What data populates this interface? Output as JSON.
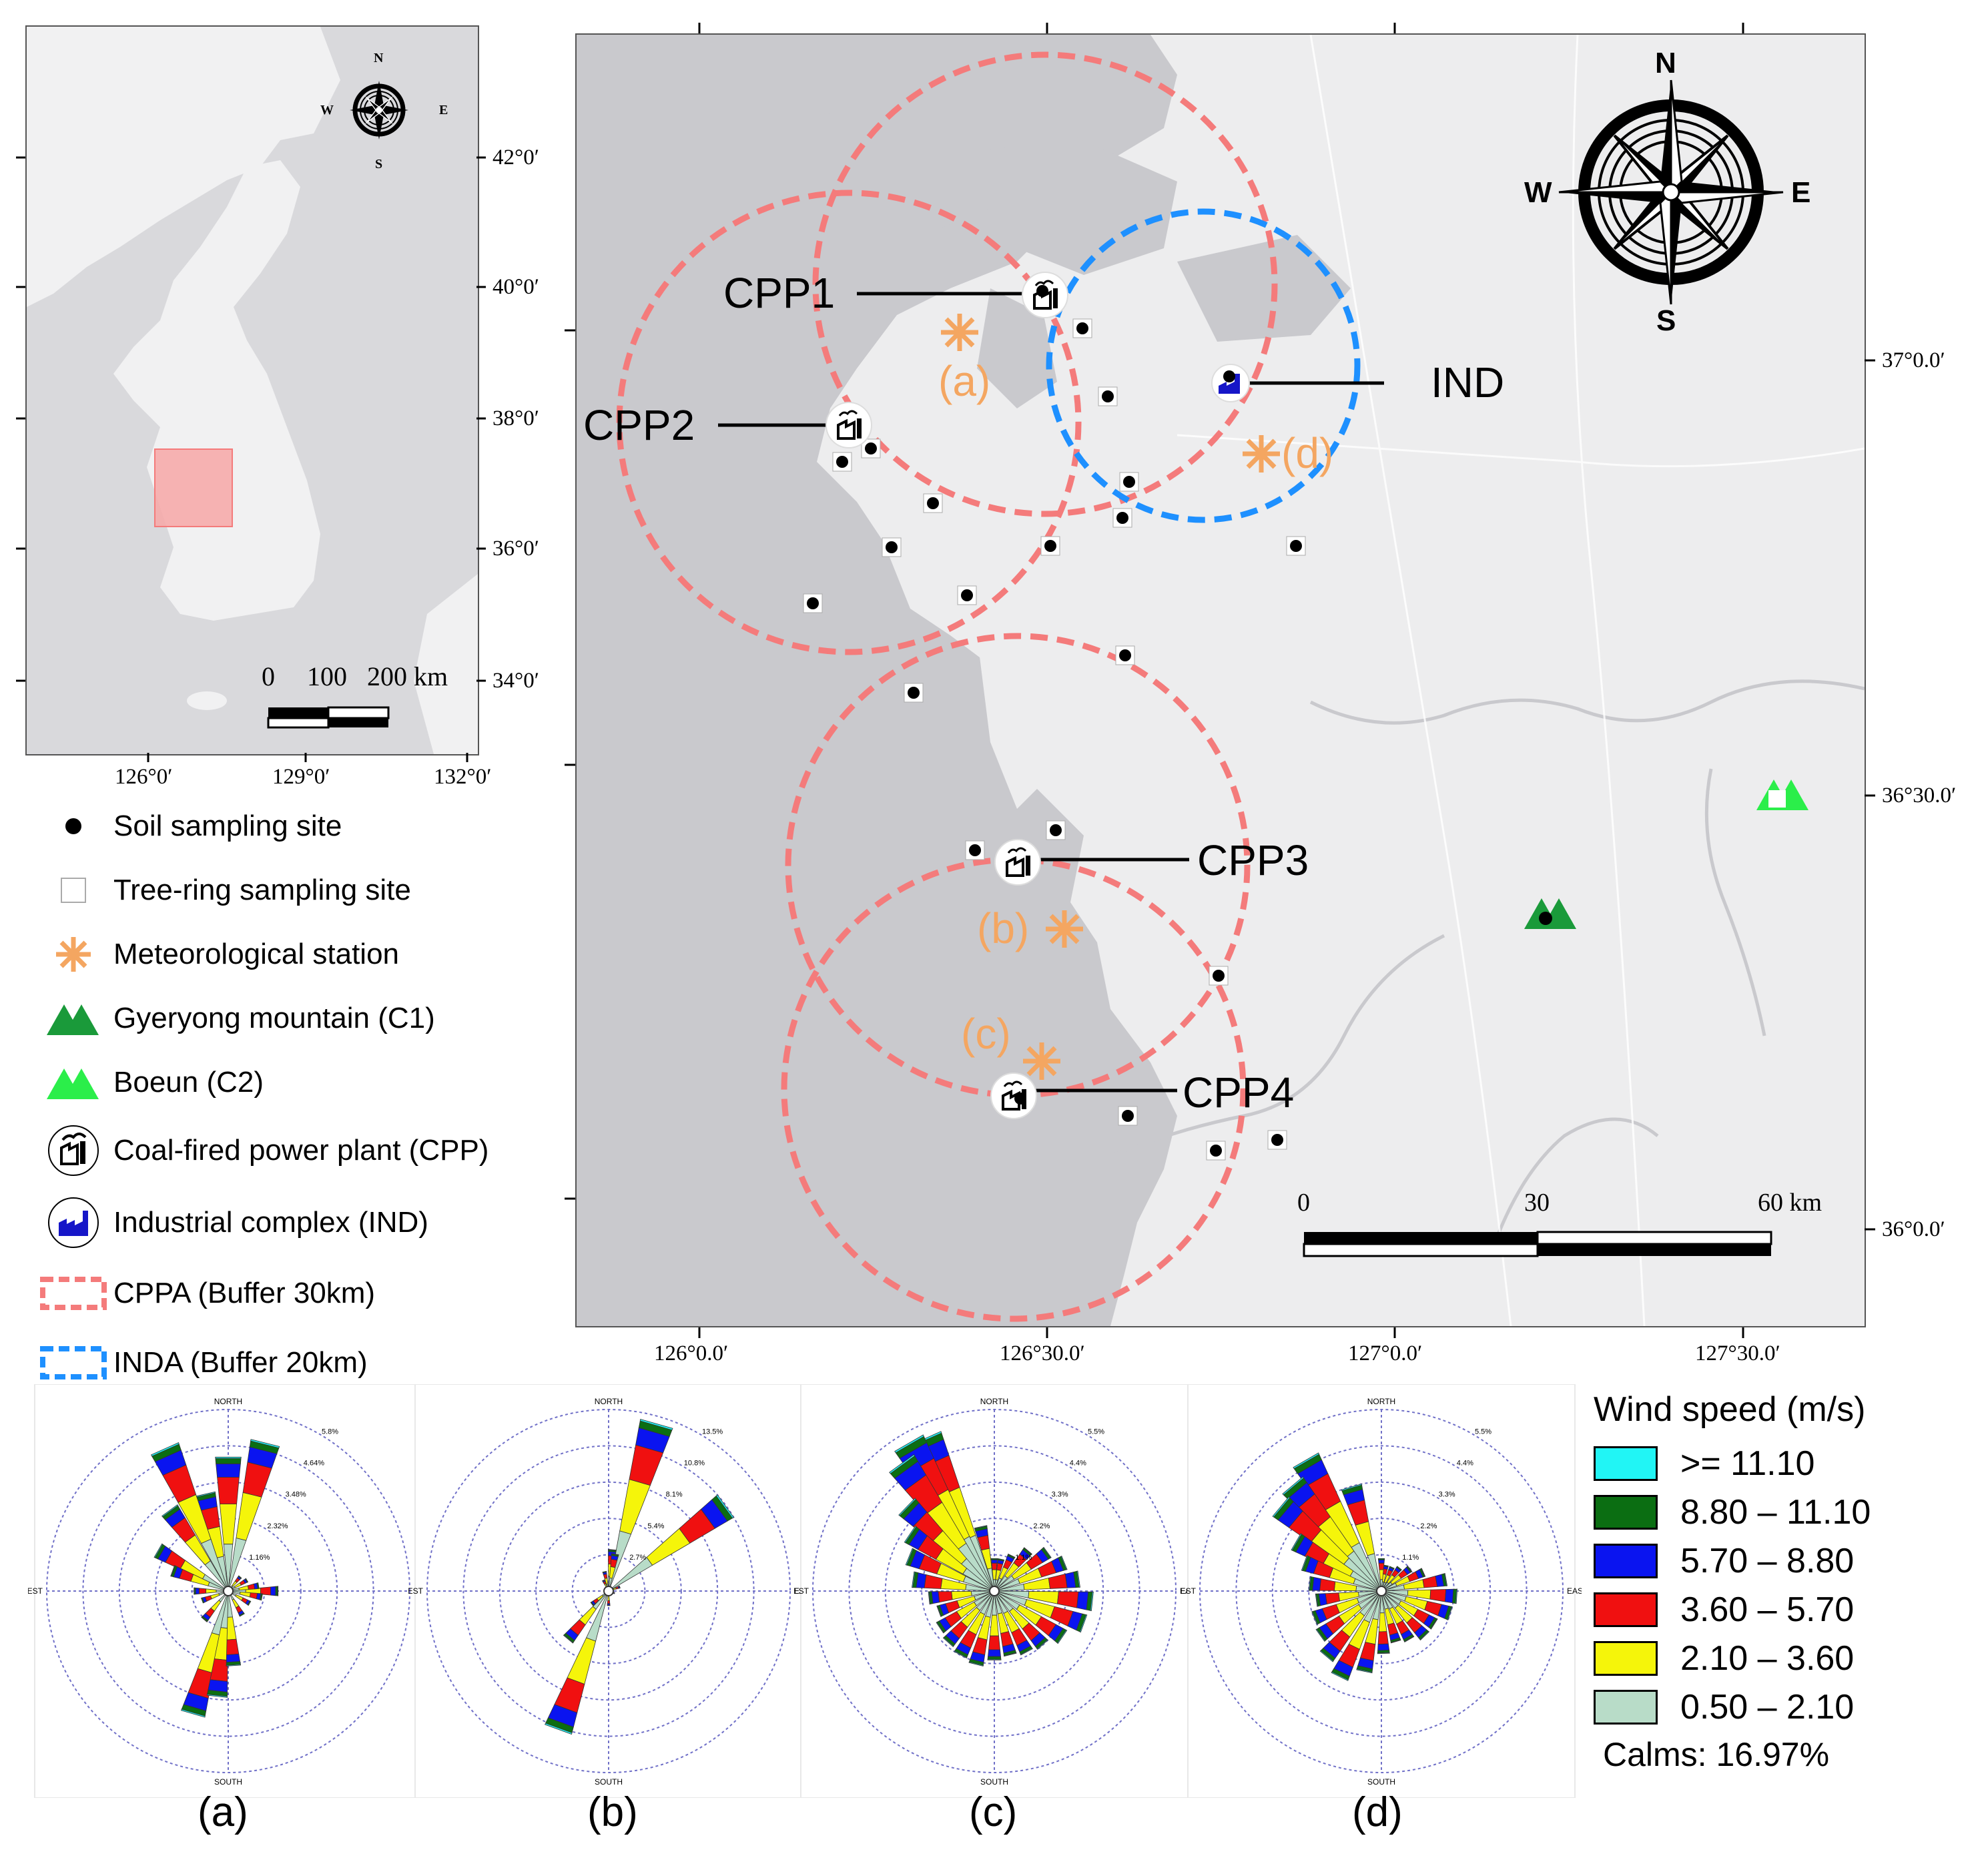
{
  "inset": {
    "lat_labels": [
      "42°0′",
      "40°0′",
      "38°0′",
      "36°0′",
      "34°0′"
    ],
    "lon_labels": [
      "126°0′",
      "129°0′",
      "132°0′"
    ],
    "scale_labels": [
      "0",
      "100",
      "200 km"
    ],
    "compass": {
      "n": "N",
      "s": "S",
      "e": "E",
      "w": "W"
    }
  },
  "main_map": {
    "lat_labels": [
      "37°0.0′",
      "36°30.0′",
      "36°0.0′"
    ],
    "lon_labels": [
      "126°0.0′",
      "126°30.0′",
      "127°0.0′",
      "127°30.0′"
    ],
    "scale_labels": [
      "0",
      "30",
      "60 km"
    ],
    "compass": {
      "n": "N",
      "s": "S",
      "e": "E",
      "w": "W"
    },
    "callouts": {
      "cpp1": "CPP1",
      "cpp2": "CPP2",
      "cpp3": "CPP3",
      "cpp4": "CPP4",
      "ind": "IND"
    },
    "station_labels": {
      "a": "(a)",
      "b": "(b)",
      "c": "(c)",
      "d": "(d)"
    }
  },
  "legend": [
    {
      "symbol": "soil-site",
      "label": "Soil sampling site"
    },
    {
      "symbol": "tree-ring-site",
      "label": "Tree-ring sampling site"
    },
    {
      "symbol": "met-station",
      "label": "Meteorological station"
    },
    {
      "symbol": "gyeryong",
      "label": "Gyeryong mountain (C1)"
    },
    {
      "symbol": "boeun",
      "label": "Boeun (C2)"
    },
    {
      "symbol": "cpp",
      "label": "Coal-fired power plant (CPP)"
    },
    {
      "symbol": "ind",
      "label": "Industrial complex (IND)"
    },
    {
      "symbol": "cppa-buffer",
      "label": "CPPA (Buffer 30km)"
    },
    {
      "symbol": "inda-buffer",
      "label": "INDA (Buffer 20km)"
    }
  ],
  "colors": {
    "cppa_buffer": "#f47b7b",
    "inda_buffer": "#1e90ff",
    "met_station": "#f4a661",
    "gyeryong": "#1a9a3a",
    "boeun": "#2bee4a",
    "ind_icon": "#1616c8",
    "inset_highlight": "#f7a7a7"
  },
  "wind_roses": {
    "panels": [
      "(a)",
      "(b)",
      "(c)",
      "(d)"
    ],
    "direction_labels": {
      "n": "NORTH",
      "s": "SOUTH",
      "e": "EAST",
      "w": "WEST"
    },
    "ring_labels": {
      "a": [
        "1.16%",
        "2.32%",
        "3.48%",
        "4.64%",
        "5.8%"
      ],
      "b": [
        "2.7%",
        "5.4%",
        "8.1%",
        "10.8%",
        "13.5%"
      ],
      "c": [
        "1.1%",
        "2.2%",
        "3.3%",
        "4.4%",
        "5.5%"
      ],
      "d": [
        "1.1%",
        "2.2%",
        "3.3%",
        "4.4%",
        "5.5%"
      ]
    },
    "legend_title": "Wind speed (m/s)",
    "bins": [
      {
        "label": ">= 11.10",
        "color": "#21f5f5"
      },
      {
        "label": "8.80 – 11.10",
        "color": "#0b6e12"
      },
      {
        "label": "5.70 – 8.80",
        "color": "#0a14f0"
      },
      {
        "label": "3.60 – 5.70",
        "color": "#f01010"
      },
      {
        "label": "2.10 – 3.60",
        "color": "#f5f50a"
      },
      {
        "label": "0.50 – 2.10",
        "color": "#b8dcc8"
      }
    ],
    "calms": "Calms: 16.97%"
  }
}
